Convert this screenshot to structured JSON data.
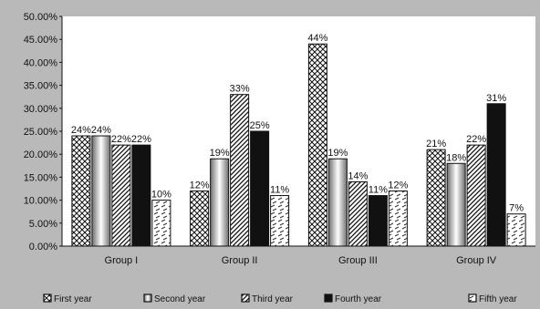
{
  "chart_data": {
    "type": "bar",
    "categories": [
      "Group I",
      "Group II",
      "Group III",
      "Group IV"
    ],
    "series": [
      {
        "name": "First year",
        "values": [
          24,
          12,
          44,
          21
        ],
        "labels": [
          "24%",
          "12%",
          "44%",
          "21%"
        ]
      },
      {
        "name": "Second year",
        "values": [
          24,
          19,
          19,
          18
        ],
        "labels": [
          "24%",
          "19%",
          "19%",
          "18%"
        ]
      },
      {
        "name": "Third year",
        "values": [
          22,
          33,
          14,
          22
        ],
        "labels": [
          "22%",
          "33%",
          "14%",
          "22%"
        ]
      },
      {
        "name": "Fourth year",
        "values": [
          22,
          25,
          11,
          31
        ],
        "labels": [
          "22%",
          "25%",
          "11%",
          "31%"
        ]
      },
      {
        "name": "Fifth year",
        "values": [
          10,
          11,
          12,
          7
        ],
        "labels": [
          "10%",
          "11%",
          "12%",
          "7%"
        ]
      }
    ],
    "yticks": [
      "0.00%",
      "5.00%",
      "10.00%",
      "15.00%",
      "20.00%",
      "25.00%",
      "30.00%",
      "35.00%",
      "40.00%",
      "45.00%",
      "50.00%"
    ],
    "ylim": [
      0,
      50
    ],
    "grid": false,
    "legend": "bottom",
    "title": "",
    "xlabel": "",
    "ylabel": "",
    "colors": {
      "background": "#b9b9b9",
      "plot": "#ffffff",
      "ink": "#111111",
      "bar_dark": "#111111",
      "bar_light": "#ffffff"
    },
    "series_patterns": [
      "crosshatch",
      "gradient",
      "diagonal",
      "solid",
      "dashes"
    ]
  }
}
